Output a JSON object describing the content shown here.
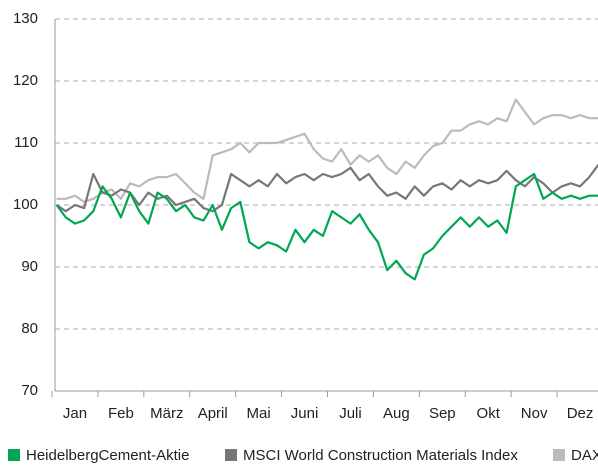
{
  "chart_data": {
    "type": "line",
    "categories": [
      null,
      null,
      "Jan",
      null,
      null,
      null,
      null,
      "Feb",
      null,
      null,
      null,
      null,
      "März",
      null,
      null,
      null,
      null,
      "April",
      null,
      null,
      null,
      null,
      "Mai",
      null,
      null,
      null,
      null,
      "Juni",
      null,
      null,
      null,
      null,
      "Juli",
      null,
      null,
      null,
      null,
      "Aug",
      null,
      null,
      null,
      null,
      "Sep",
      null,
      null,
      null,
      null,
      "Okt",
      null,
      null,
      null,
      null,
      "Nov",
      null,
      null,
      null,
      null,
      "Dez",
      null,
      null
    ],
    "series": [
      {
        "name": "HeidelbergCement-Aktie",
        "color": "#00a651",
        "values": [
          100,
          98,
          97,
          97.5,
          99,
          103,
          101,
          98,
          102,
          99,
          97,
          102,
          101,
          99,
          100,
          98,
          97.5,
          100,
          96,
          99.5,
          100.5,
          94,
          93,
          94,
          93.5,
          92.5,
          96,
          94,
          96,
          95,
          99,
          98,
          97,
          98.5,
          96,
          94,
          89.5,
          91,
          89,
          88,
          92,
          93,
          95,
          96.5,
          98,
          96.5,
          98,
          96.5,
          97.5,
          95.5,
          103,
          104,
          105,
          101,
          102,
          101,
          101.5,
          101,
          101.5,
          101.5
        ]
      },
      {
        "name": "MSCI World Construction Materials Index",
        "color": "#777777",
        "values": [
          100,
          99,
          100,
          99.5,
          105,
          102,
          101.5,
          102.5,
          102,
          100,
          102,
          101,
          101.5,
          100,
          100.5,
          101,
          99.5,
          99,
          100,
          105,
          104,
          103,
          104,
          103,
          105,
          103.5,
          104.5,
          105,
          104,
          105,
          104.5,
          105,
          106,
          104,
          105,
          103,
          101.5,
          102,
          101,
          103,
          101.5,
          103,
          103.5,
          102.5,
          104,
          103,
          104,
          103.5,
          104,
          105.5,
          104,
          103,
          104.5,
          103.5,
          102,
          103,
          103.5,
          103,
          104.5,
          106.5
        ]
      },
      {
        "name": "DAX",
        "color": "#bbbbbb",
        "values": [
          101,
          101,
          101.5,
          100.5,
          101,
          102,
          102.5,
          101,
          103.5,
          103,
          104,
          104.5,
          104.5,
          105,
          103.5,
          102,
          101,
          108,
          108.5,
          109,
          110,
          108.5,
          110,
          110,
          110,
          110.5,
          111,
          111.5,
          109,
          107.5,
          107,
          109,
          106.5,
          108,
          107,
          108,
          106,
          105,
          107,
          106,
          108,
          109.5,
          110,
          112,
          112,
          113,
          113.5,
          113,
          114,
          113.5,
          117,
          115,
          113,
          114,
          114.5,
          114.5,
          114,
          114.5,
          114,
          114
        ]
      }
    ],
    "ylim": [
      70,
      130
    ],
    "yticks": [
      70,
      80,
      90,
      100,
      110,
      120,
      130
    ],
    "grid": true
  }
}
